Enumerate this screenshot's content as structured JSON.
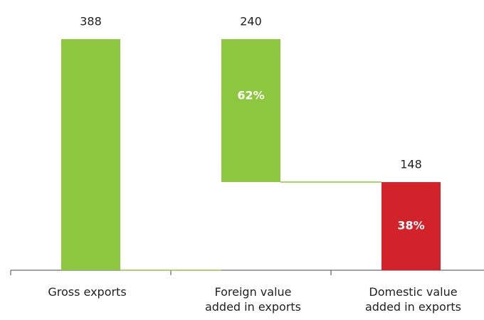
{
  "chart_data": {
    "type": "waterfall",
    "categories": [
      "Gross exports",
      "Foreign value added in exports",
      "Domestic value added in exports"
    ],
    "values": [
      388,
      240,
      148
    ],
    "kinds": [
      "total",
      "part",
      "part"
    ],
    "colors": [
      "#8dc63f",
      "#8dc63f",
      "#d2232a"
    ],
    "share_labels": [
      null,
      "62%",
      "38%"
    ],
    "ylim": [
      0,
      400
    ]
  }
}
